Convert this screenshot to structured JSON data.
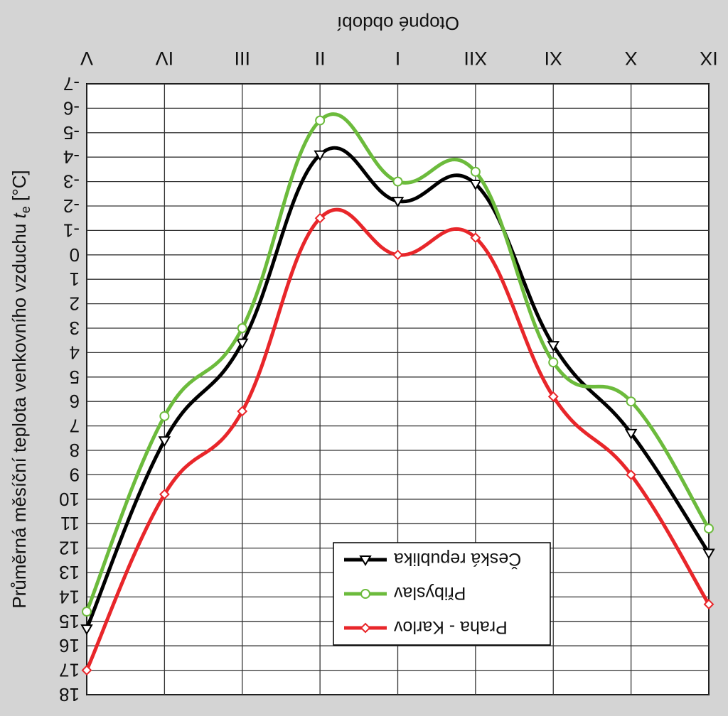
{
  "chart_data": {
    "type": "line",
    "title": "",
    "xlabel": "Otopné období",
    "ylabel": "Průměrná měsíční teplota venkovního vzduchu t_e [°C]",
    "ylabel_main": "Průměrná měsíční teplota venkovního vzduchu ",
    "ylabel_sub_base": "t",
    "ylabel_sub": "e",
    "ylabel_unit": " [°C]",
    "categories": [
      "IX",
      "X",
      "XI",
      "XII",
      "I",
      "II",
      "III",
      "IV",
      "V"
    ],
    "y_ticks": [
      18,
      17,
      16,
      15,
      14,
      13,
      12,
      11,
      10,
      9,
      8,
      7,
      6,
      5,
      4,
      3,
      2,
      1,
      0,
      -1,
      -2,
      -3,
      -4,
      -5,
      -6,
      -7
    ],
    "ylim": [
      18,
      -7
    ],
    "y_inverted": true,
    "grid": true,
    "legend_position": "inside-upper-center",
    "series": [
      {
        "name": "Česká republika",
        "color": "#000000",
        "marker": "triangle",
        "values": [
          12.2,
          7.3,
          3.7,
          -2.9,
          -2.2,
          -4.1,
          3.6,
          7.6,
          15.3
        ]
      },
      {
        "name": "Přibyslav",
        "color": "#6cbb3c",
        "marker": "circle",
        "values": [
          11.2,
          6.0,
          4.4,
          -3.4,
          -3.0,
          -5.5,
          3.0,
          6.6,
          14.6
        ]
      },
      {
        "name": "Praha - Karlov",
        "color": "#e8262a",
        "marker": "diamond",
        "values": [
          14.3,
          9.0,
          5.8,
          -0.7,
          0.0,
          -1.5,
          6.4,
          9.8,
          17.0
        ]
      }
    ]
  }
}
